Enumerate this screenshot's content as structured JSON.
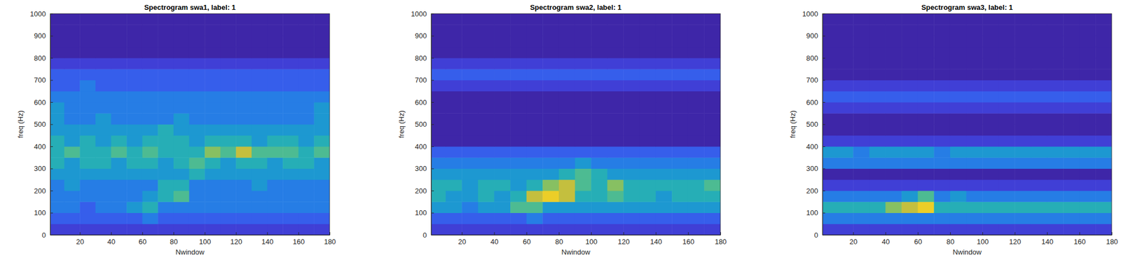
{
  "chart_data": [
    {
      "type": "heatmap",
      "title": "Spectrogram swa1, label: 1",
      "xlabel": "Nwindow",
      "ylabel": "freq (Hz)",
      "xlim": [
        1,
        180
      ],
      "ylim": [
        0,
        1000
      ],
      "xticks": [
        20,
        40,
        60,
        80,
        100,
        120,
        140,
        160,
        180
      ],
      "yticks": [
        0,
        100,
        200,
        300,
        400,
        500,
        600,
        700,
        800,
        900,
        1000
      ],
      "x_bins": [
        1,
        10,
        20,
        30,
        40,
        50,
        60,
        70,
        80,
        90,
        100,
        110,
        120,
        130,
        140,
        150,
        160,
        170,
        180
      ],
      "y_bins": [
        0,
        50,
        100,
        150,
        200,
        250,
        300,
        350,
        400,
        450,
        500,
        550,
        600,
        650,
        700,
        750,
        800,
        850,
        900,
        950,
        1000
      ],
      "clim": [
        0,
        10
      ],
      "cells": [
        [
          1,
          1,
          1,
          1,
          1,
          1,
          1,
          1,
          1,
          1,
          1,
          1,
          1,
          1,
          1,
          1,
          1,
          1
        ],
        [
          2,
          2,
          2,
          2,
          2,
          2,
          3,
          2,
          2,
          2,
          2,
          2,
          2,
          2,
          2,
          2,
          2,
          2
        ],
        [
          3,
          3,
          2,
          3,
          3,
          4,
          5,
          3,
          3,
          3,
          3,
          3,
          3,
          3,
          3,
          3,
          3,
          3
        ],
        [
          3,
          3,
          3,
          3,
          3,
          3,
          4,
          5,
          6,
          3,
          3,
          3,
          3,
          3,
          3,
          3,
          3,
          3
        ],
        [
          3,
          4,
          3,
          3,
          3,
          3,
          3,
          5,
          5,
          3,
          3,
          3,
          3,
          4,
          3,
          3,
          3,
          3
        ],
        [
          4,
          4,
          4,
          4,
          4,
          4,
          4,
          4,
          4,
          5,
          4,
          4,
          4,
          4,
          4,
          4,
          4,
          4
        ],
        [
          5,
          4,
          5,
          5,
          4,
          5,
          5,
          4,
          5,
          6,
          5,
          4,
          5,
          5,
          4,
          5,
          5,
          4
        ],
        [
          5,
          6,
          5,
          5,
          6,
          5,
          6,
          5,
          5,
          5,
          7,
          6,
          8,
          6,
          6,
          6,
          5,
          6
        ],
        [
          5,
          4,
          5,
          4,
          5,
          4,
          5,
          5,
          5,
          4,
          5,
          5,
          5,
          4,
          5,
          5,
          4,
          5
        ],
        [
          4,
          4,
          4,
          4,
          4,
          4,
          4,
          5,
          4,
          4,
          4,
          4,
          4,
          4,
          4,
          4,
          4,
          4
        ],
        [
          4,
          3,
          3,
          4,
          3,
          3,
          3,
          3,
          4,
          3,
          3,
          3,
          3,
          3,
          3,
          3,
          3,
          4
        ],
        [
          4,
          3,
          3,
          3,
          3,
          3,
          3,
          3,
          3,
          3,
          3,
          3,
          3,
          3,
          3,
          3,
          3,
          4
        ],
        [
          3,
          3,
          3,
          3,
          3,
          3,
          3,
          3,
          3,
          3,
          3,
          3,
          3,
          3,
          3,
          3,
          3,
          3
        ],
        [
          2,
          2,
          3,
          2,
          2,
          2,
          2,
          2,
          2,
          2,
          2,
          2,
          2,
          2,
          2,
          2,
          2,
          2
        ],
        [
          2,
          2,
          2,
          2,
          2,
          2,
          2,
          2,
          2,
          2,
          2,
          2,
          2,
          2,
          2,
          2,
          2,
          2
        ],
        [
          1,
          1,
          1,
          1,
          1,
          1,
          1,
          1,
          1,
          1,
          1,
          1,
          1,
          1,
          1,
          1,
          1,
          1
        ],
        [
          0,
          0,
          0,
          0,
          0,
          0,
          0,
          0,
          0,
          0,
          0,
          0,
          0,
          0,
          0,
          0,
          0,
          0
        ],
        [
          0,
          0,
          0,
          0,
          0,
          0,
          0,
          0,
          0,
          0,
          0,
          0,
          0,
          0,
          0,
          0,
          0,
          0
        ],
        [
          0,
          0,
          0,
          0,
          0,
          0,
          0,
          0,
          0,
          0,
          0,
          0,
          0,
          0,
          0,
          0,
          0,
          0
        ],
        [
          0,
          0,
          0,
          0,
          0,
          0,
          0,
          0,
          0,
          0,
          0,
          0,
          0,
          0,
          0,
          0,
          0,
          0
        ]
      ]
    },
    {
      "type": "heatmap",
      "title": "Spectrogram swa2, label: 1",
      "xlabel": "Nwindow",
      "ylabel": "freq (Hz)",
      "xlim": [
        1,
        180
      ],
      "ylim": [
        0,
        1000
      ],
      "xticks": [
        20,
        40,
        60,
        80,
        100,
        120,
        140,
        160,
        180
      ],
      "yticks": [
        0,
        100,
        200,
        300,
        400,
        500,
        600,
        700,
        800,
        900,
        1000
      ],
      "x_bins": [
        1,
        10,
        20,
        30,
        40,
        50,
        60,
        70,
        80,
        90,
        100,
        110,
        120,
        130,
        140,
        150,
        160,
        170,
        180
      ],
      "y_bins": [
        0,
        50,
        100,
        150,
        200,
        250,
        300,
        350,
        400,
        450,
        500,
        550,
        600,
        650,
        700,
        750,
        800,
        850,
        900,
        950,
        1000
      ],
      "clim": [
        0,
        10
      ],
      "cells": [
        [
          1,
          1,
          1,
          1,
          1,
          1,
          1,
          1,
          1,
          1,
          1,
          1,
          1,
          1,
          1,
          1,
          1,
          1
        ],
        [
          2,
          2,
          2,
          2,
          2,
          2,
          3,
          2,
          2,
          2,
          2,
          2,
          2,
          2,
          2,
          2,
          2,
          2
        ],
        [
          4,
          4,
          3,
          4,
          4,
          6,
          6,
          4,
          4,
          4,
          4,
          4,
          4,
          4,
          4,
          4,
          4,
          4
        ],
        [
          5,
          4,
          4,
          5,
          4,
          5,
          8,
          9,
          8,
          5,
          5,
          6,
          5,
          5,
          4,
          5,
          5,
          5
        ],
        [
          5,
          5,
          4,
          5,
          5,
          4,
          5,
          7,
          8,
          6,
          5,
          7,
          5,
          5,
          5,
          5,
          5,
          6
        ],
        [
          4,
          4,
          4,
          4,
          4,
          4,
          4,
          4,
          5,
          6,
          5,
          4,
          4,
          4,
          4,
          4,
          4,
          4
        ],
        [
          3,
          3,
          3,
          3,
          3,
          3,
          3,
          3,
          3,
          4,
          3,
          3,
          3,
          3,
          3,
          3,
          3,
          3
        ],
        [
          2,
          2,
          2,
          2,
          2,
          2,
          2,
          2,
          2,
          2,
          2,
          2,
          2,
          2,
          2,
          2,
          2,
          2
        ],
        [
          0,
          0,
          0,
          0,
          0,
          0,
          0,
          0,
          0,
          0,
          0,
          0,
          0,
          0,
          0,
          0,
          0,
          0
        ],
        [
          0,
          0,
          0,
          0,
          0,
          0,
          0,
          0,
          0,
          0,
          0,
          0,
          0,
          0,
          0,
          0,
          0,
          0
        ],
        [
          0,
          0,
          0,
          0,
          0,
          0,
          0,
          0,
          0,
          0,
          0,
          0,
          0,
          0,
          0,
          0,
          0,
          0
        ],
        [
          0,
          0,
          0,
          0,
          0,
          0,
          0,
          0,
          0,
          0,
          0,
          0,
          0,
          0,
          0,
          0,
          0,
          0
        ],
        [
          0,
          0,
          0,
          0,
          0,
          0,
          0,
          0,
          0,
          0,
          0,
          0,
          0,
          0,
          0,
          0,
          0,
          0
        ],
        [
          1,
          1,
          1,
          1,
          1,
          1,
          1,
          1,
          1,
          1,
          1,
          1,
          1,
          1,
          1,
          1,
          1,
          1
        ],
        [
          2,
          2,
          2,
          2,
          2,
          2,
          2,
          2,
          2,
          2,
          2,
          2,
          2,
          2,
          2,
          2,
          2,
          2
        ],
        [
          1,
          1,
          1,
          1,
          1,
          1,
          1,
          1,
          1,
          1,
          1,
          1,
          1,
          1,
          1,
          1,
          1,
          1
        ],
        [
          0,
          0,
          0,
          0,
          0,
          0,
          0,
          0,
          0,
          0,
          0,
          0,
          0,
          0,
          0,
          0,
          0,
          0
        ],
        [
          0,
          0,
          0,
          0,
          0,
          0,
          0,
          0,
          0,
          0,
          0,
          0,
          0,
          0,
          0,
          0,
          0,
          0
        ],
        [
          0,
          0,
          0,
          0,
          0,
          0,
          0,
          0,
          0,
          0,
          0,
          0,
          0,
          0,
          0,
          0,
          0,
          0
        ],
        [
          0,
          0,
          0,
          0,
          0,
          0,
          0,
          0,
          0,
          0,
          0,
          0,
          0,
          0,
          0,
          0,
          0,
          0
        ]
      ]
    },
    {
      "type": "heatmap",
      "title": "Spectrogram swa3, label: 1",
      "xlabel": "Nwindow",
      "ylabel": "freq (Hz)",
      "xlim": [
        1,
        180
      ],
      "ylim": [
        0,
        1000
      ],
      "xticks": [
        20,
        40,
        60,
        80,
        100,
        120,
        140,
        160,
        180
      ],
      "yticks": [
        0,
        100,
        200,
        300,
        400,
        500,
        600,
        700,
        800,
        900,
        1000
      ],
      "x_bins": [
        1,
        10,
        20,
        30,
        40,
        50,
        60,
        70,
        80,
        90,
        100,
        110,
        120,
        130,
        140,
        150,
        160,
        170,
        180
      ],
      "y_bins": [
        0,
        50,
        100,
        150,
        200,
        250,
        300,
        350,
        400,
        450,
        500,
        550,
        600,
        650,
        700,
        750,
        800,
        850,
        900,
        950,
        1000
      ],
      "clim": [
        0,
        10
      ],
      "cells": [
        [
          1,
          1,
          1,
          1,
          1,
          1,
          1,
          1,
          1,
          1,
          1,
          1,
          1,
          1,
          1,
          1,
          1,
          1
        ],
        [
          3,
          3,
          3,
          3,
          3,
          3,
          3,
          3,
          3,
          3,
          3,
          3,
          3,
          3,
          3,
          3,
          3,
          3
        ],
        [
          5,
          5,
          5,
          5,
          7,
          8,
          9,
          5,
          5,
          5,
          5,
          5,
          5,
          5,
          5,
          5,
          5,
          5
        ],
        [
          3,
          3,
          3,
          3,
          3,
          4,
          6,
          3,
          4,
          3,
          3,
          3,
          3,
          3,
          3,
          3,
          3,
          3
        ],
        [
          1,
          1,
          1,
          1,
          1,
          1,
          1,
          1,
          1,
          1,
          1,
          1,
          1,
          1,
          1,
          1,
          1,
          1
        ],
        [
          0,
          0,
          0,
          0,
          0,
          0,
          0,
          0,
          0,
          0,
          0,
          0,
          0,
          0,
          0,
          0,
          0,
          0
        ],
        [
          3,
          3,
          3,
          3,
          3,
          3,
          3,
          3,
          3,
          3,
          3,
          3,
          3,
          3,
          3,
          3,
          3,
          3
        ],
        [
          4,
          4,
          3,
          4,
          4,
          4,
          4,
          3,
          4,
          4,
          4,
          4,
          4,
          4,
          4,
          4,
          4,
          4
        ],
        [
          1,
          1,
          1,
          1,
          1,
          1,
          1,
          1,
          1,
          1,
          1,
          1,
          1,
          1,
          1,
          1,
          1,
          1
        ],
        [
          0,
          0,
          0,
          0,
          0,
          0,
          0,
          0,
          0,
          0,
          0,
          0,
          0,
          0,
          0,
          0,
          0,
          0
        ],
        [
          0,
          0,
          0,
          0,
          0,
          0,
          0,
          0,
          0,
          0,
          0,
          0,
          0,
          0,
          0,
          0,
          0,
          0
        ],
        [
          1,
          1,
          1,
          1,
          1,
          1,
          1,
          1,
          1,
          1,
          1,
          1,
          1,
          1,
          1,
          1,
          1,
          1
        ],
        [
          2,
          2,
          2,
          2,
          2,
          2,
          2,
          2,
          2,
          2,
          2,
          2,
          2,
          2,
          2,
          2,
          2,
          2
        ],
        [
          1,
          1,
          1,
          1,
          1,
          1,
          1,
          1,
          1,
          1,
          1,
          1,
          1,
          1,
          1,
          1,
          1,
          1
        ],
        [
          0,
          0,
          0,
          0,
          0,
          0,
          0,
          0,
          0,
          0,
          0,
          0,
          0,
          0,
          0,
          0,
          0,
          0
        ],
        [
          0,
          0,
          0,
          0,
          0,
          0,
          0,
          0,
          0,
          0,
          0,
          0,
          0,
          0,
          0,
          0,
          0,
          0
        ],
        [
          0,
          0,
          0,
          0,
          0,
          0,
          0,
          0,
          0,
          0,
          0,
          0,
          0,
          0,
          0,
          0,
          0,
          0
        ],
        [
          0,
          0,
          0,
          0,
          0,
          0,
          0,
          0,
          0,
          0,
          0,
          0,
          0,
          0,
          0,
          0,
          0,
          0
        ],
        [
          0,
          0,
          0,
          0,
          0,
          0,
          0,
          0,
          0,
          0,
          0,
          0,
          0,
          0,
          0,
          0,
          0,
          0
        ],
        [
          0,
          0,
          0,
          0,
          0,
          0,
          0,
          0,
          0,
          0,
          0,
          0,
          0,
          0,
          0,
          0,
          0,
          0
        ]
      ]
    }
  ]
}
